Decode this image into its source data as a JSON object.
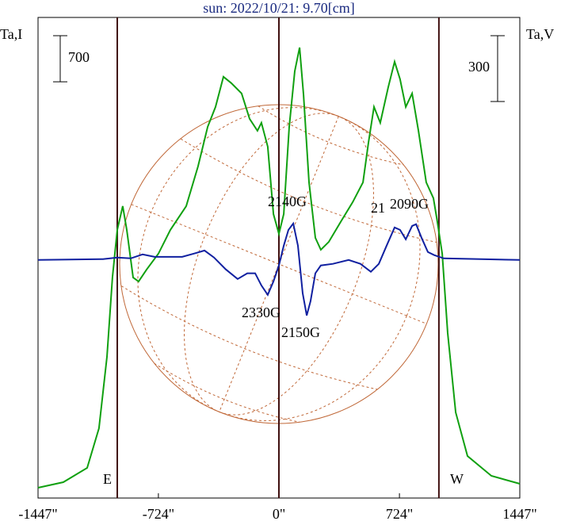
{
  "chart_data": {
    "type": "line",
    "title": "sun: 2022/10/21: 9.70[cm]",
    "ylabel": "Ta,I",
    "y2label": "Ta,V",
    "xlim": [
      -1447,
      1447
    ],
    "xticks": [
      {
        "value": -1447,
        "label": "-1447\""
      },
      {
        "value": -724,
        "label": "-724\""
      },
      {
        "value": 0,
        "label": "0\""
      },
      {
        "value": 724,
        "label": "724\""
      },
      {
        "value": 1447,
        "label": "1447\""
      }
    ],
    "ylim": [
      0,
      7300
    ],
    "y2lim": [
      -1085,
      1105
    ],
    "scale_bars": {
      "y": 700,
      "y2": 300
    },
    "vlines": [
      -971,
      0,
      961
    ],
    "limb_labels": [
      "E",
      "W"
    ],
    "annotations": [
      "2140G",
      "21",
      "2090G",
      "2330G",
      "2150G"
    ],
    "series": [
      {
        "name": "Ta,I",
        "color": "#10a010",
        "x": [
          -1447,
          -1295,
          -1152,
          -1081,
          -1033,
          -1000,
          -971,
          -938,
          -914,
          -876,
          -843,
          -795,
          -724,
          -652,
          -557,
          -486,
          -428,
          -381,
          -333,
          -286,
          -224,
          -176,
          -129,
          -105,
          -67,
          -33,
          0,
          29,
          62,
          95,
          124,
          148,
          181,
          219,
          252,
          300,
          371,
          443,
          505,
          538,
          571,
          609,
          657,
          695,
          728,
          762,
          800,
          838,
          885,
          928,
          952,
          981,
          1014,
          1062,
          1133,
          1276,
          1447
        ],
        "values": [
          157,
          241,
          458,
          1060,
          2145,
          3350,
          4073,
          4434,
          4073,
          3350,
          3290,
          3470,
          3711,
          4073,
          4434,
          5037,
          5639,
          5941,
          6399,
          6302,
          6146,
          5760,
          5579,
          5700,
          5338,
          4314,
          4013,
          4314,
          5639,
          6483,
          6844,
          6121,
          4796,
          3952,
          3772,
          3892,
          4193,
          4495,
          4796,
          5398,
          5941,
          5700,
          6242,
          6628,
          6362,
          5941,
          6146,
          5579,
          4796,
          4555,
          4193,
          3711,
          2506,
          1301,
          639,
          337,
          217
        ]
      },
      {
        "name": "Ta,V",
        "color": "#1020a0",
        "axis": "y2",
        "x": [
          -1447,
          -1057,
          -971,
          -890,
          -819,
          -747,
          -581,
          -509,
          -447,
          -390,
          -319,
          -248,
          -190,
          -143,
          -105,
          -67,
          -33,
          0,
          29,
          57,
          86,
          114,
          143,
          167,
          190,
          219,
          252,
          324,
          419,
          490,
          552,
          600,
          647,
          695,
          728,
          762,
          800,
          824,
          857,
          895,
          933,
          990,
          1447
        ],
        "values": [
          0,
          4,
          11,
          7,
          25,
          14,
          14,
          29,
          43,
          11,
          -43,
          -87,
          -61,
          -61,
          -116,
          -159,
          -98,
          -25,
          65,
          137,
          166,
          65,
          -152,
          -253,
          -188,
          -61,
          -25,
          -18,
          0,
          -18,
          -54,
          -18,
          65,
          148,
          137,
          94,
          155,
          163,
          101,
          36,
          22,
          7,
          0
        ]
      }
    ]
  }
}
